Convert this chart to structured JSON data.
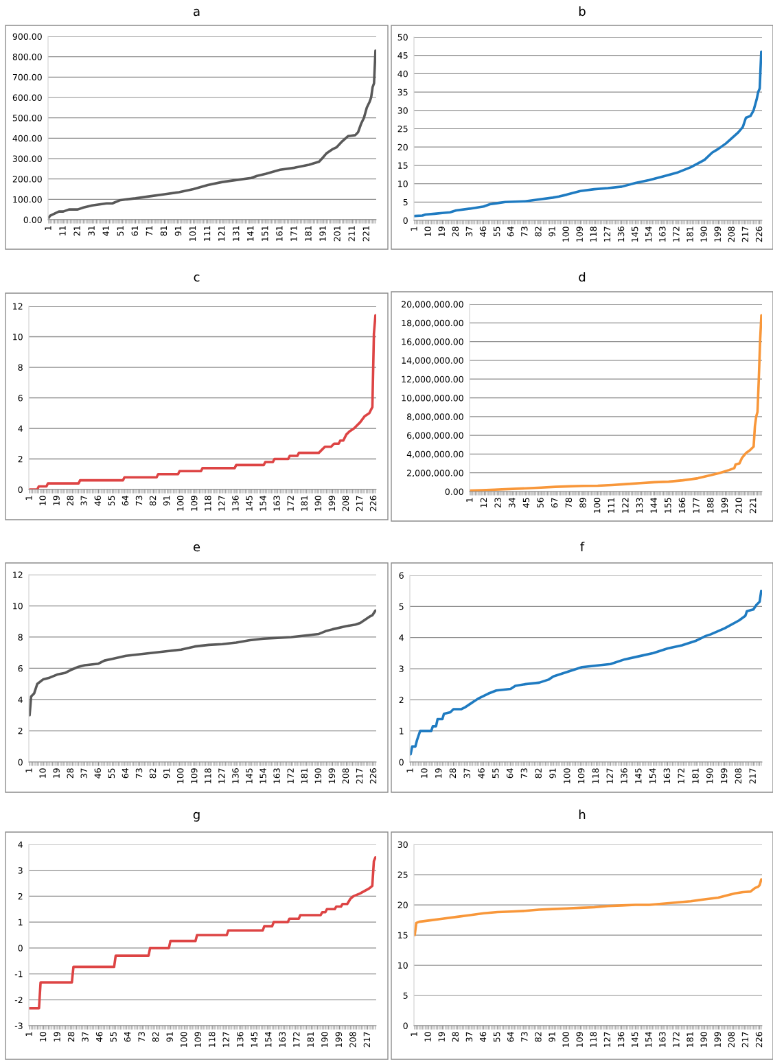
{
  "chart_data": [
    {
      "type": "line",
      "title": "a",
      "xlim": [
        0.5,
        227.5
      ],
      "xticks": [
        1,
        11,
        21,
        31,
        41,
        51,
        61,
        71,
        81,
        91,
        101,
        111,
        121,
        131,
        141,
        151,
        161,
        171,
        181,
        191,
        201,
        211,
        221
      ],
      "ylim": [
        0,
        900
      ],
      "yticks": [
        {
          "value": 0,
          "label": "0.00"
        },
        {
          "value": 100,
          "label": "100.00"
        },
        {
          "value": 200,
          "label": "200.00"
        },
        {
          "value": 300,
          "label": "300.00"
        },
        {
          "value": 400,
          "label": "400.00"
        },
        {
          "value": 500,
          "label": "500.00"
        },
        {
          "value": 600,
          "label": "600.00"
        },
        {
          "value": 700,
          "label": "700.00"
        },
        {
          "value": 800,
          "label": "800.00"
        },
        {
          "value": 900,
          "label": "900.00"
        }
      ],
      "grid": "y",
      "series": [
        {
          "color": "#595959",
          "x": [
            1,
            2,
            5,
            8,
            11,
            15,
            21,
            25,
            31,
            41,
            45,
            50,
            55,
            61,
            71,
            81,
            91,
            101,
            111,
            121,
            131,
            141,
            145,
            151,
            161,
            171,
            181,
            188,
            190,
            193,
            197,
            200,
            204,
            208,
            213,
            215,
            217,
            219,
            221,
            223,
            224,
            225,
            226,
            227
          ],
          "values": [
            10,
            20,
            30,
            40,
            40,
            50,
            50,
            60,
            70,
            80,
            80,
            95,
            100,
            105,
            115,
            125,
            135,
            150,
            170,
            185,
            195,
            205,
            215,
            225,
            245,
            255,
            270,
            285,
            300,
            325,
            345,
            355,
            385,
            410,
            415,
            430,
            470,
            500,
            550,
            580,
            600,
            650,
            670,
            830
          ]
        }
      ]
    },
    {
      "type": "line",
      "title": "b",
      "xlim": [
        0.5,
        227.5
      ],
      "xticks": [
        1,
        10,
        19,
        28,
        37,
        46,
        55,
        64,
        73,
        82,
        91,
        100,
        109,
        118,
        127,
        136,
        145,
        154,
        163,
        172,
        181,
        190,
        199,
        208,
        217,
        226
      ],
      "ylim": [
        0,
        50
      ],
      "yticks": [
        0,
        5,
        10,
        15,
        20,
        25,
        30,
        35,
        40,
        45,
        50
      ],
      "grid": "y",
      "series": [
        {
          "color": "#1f7bc1",
          "x": [
            1,
            6,
            8,
            14,
            19,
            24,
            28,
            37,
            46,
            50,
            55,
            60,
            73,
            82,
            91,
            95,
            100,
            109,
            118,
            127,
            136,
            145,
            154,
            163,
            172,
            181,
            190,
            195,
            199,
            204,
            208,
            212,
            215,
            217,
            220,
            222,
            224,
            225,
            226,
            227
          ],
          "values": [
            1.2,
            1.3,
            1.6,
            1.8,
            2.0,
            2.2,
            2.7,
            3.2,
            3.8,
            4.4,
            4.7,
            5.0,
            5.2,
            5.7,
            6.2,
            6.5,
            7.0,
            8.0,
            8.5,
            8.8,
            9.2,
            10.2,
            11.0,
            12.0,
            13.0,
            14.5,
            16.5,
            18.5,
            19.5,
            21,
            22.5,
            24,
            25.5,
            28,
            28.5,
            30,
            33,
            35,
            36,
            46
          ]
        }
      ]
    },
    {
      "type": "line",
      "title": "c",
      "xlim": [
        0.5,
        227.5
      ],
      "xticks": [
        1,
        10,
        19,
        28,
        37,
        46,
        55,
        64,
        73,
        82,
        91,
        100,
        109,
        118,
        127,
        136,
        145,
        154,
        163,
        172,
        181,
        190,
        199,
        208,
        217,
        226
      ],
      "ylim": [
        0,
        12
      ],
      "yticks": [
        0,
        2,
        4,
        6,
        8,
        10,
        12
      ],
      "grid": "y",
      "series": [
        {
          "color": "#dd4444",
          "x": [
            1,
            6,
            7,
            12,
            13,
            33,
            34,
            62,
            63,
            84,
            85,
            98,
            99,
            113,
            114,
            135,
            136,
            154,
            155,
            160,
            161,
            170,
            171,
            176,
            177,
            190,
            192,
            194,
            198,
            200,
            203,
            204,
            206,
            208,
            210,
            213,
            217,
            220,
            223,
            225,
            226,
            227
          ],
          "values": [
            0,
            0,
            0.2,
            0.2,
            0.4,
            0.4,
            0.6,
            0.6,
            0.8,
            0.8,
            1.0,
            1.0,
            1.2,
            1.2,
            1.4,
            1.4,
            1.6,
            1.6,
            1.8,
            1.8,
            2.0,
            2.0,
            2.2,
            2.2,
            2.4,
            2.4,
            2.6,
            2.8,
            2.8,
            3.0,
            3.0,
            3.2,
            3.2,
            3.6,
            3.8,
            4.0,
            4.4,
            4.8,
            5.0,
            5.4,
            10.2,
            11.4
          ]
        }
      ]
    },
    {
      "type": "line",
      "title": "d",
      "xlim": [
        0.5,
        227.5
      ],
      "xticks": [
        1,
        12,
        23,
        34,
        45,
        56,
        67,
        78,
        89,
        100,
        111,
        122,
        133,
        144,
        155,
        166,
        177,
        188,
        199,
        210,
        221
      ],
      "ylim": [
        0,
        20000000
      ],
      "yticks": [
        {
          "value": 0,
          "label": "0.00"
        },
        {
          "value": 2000000,
          "label": "2,000,000.00"
        },
        {
          "value": 4000000,
          "label": "4,000,000.00"
        },
        {
          "value": 6000000,
          "label": "6,000,000.00"
        },
        {
          "value": 8000000,
          "label": "8,000,000.00"
        },
        {
          "value": 10000000,
          "label": "10,000,000.00"
        },
        {
          "value": 12000000,
          "label": "12,000,000.00"
        },
        {
          "value": 14000000,
          "label": "14,000,000.00"
        },
        {
          "value": 16000000,
          "label": "16,000,000.00"
        },
        {
          "value": 18000000,
          "label": "18,000,000.00"
        },
        {
          "value": 20000000,
          "label": "20,000,000.00"
        }
      ],
      "grid": "y",
      "series": [
        {
          "color": "#f8973a",
          "x": [
            1,
            10,
            20,
            34,
            45,
            56,
            67,
            78,
            89,
            100,
            111,
            122,
            133,
            144,
            155,
            166,
            177,
            188,
            195,
            202,
            206,
            207,
            210,
            212,
            215,
            218,
            221,
            222,
            223,
            224,
            225,
            226,
            227
          ],
          "values": [
            100000,
            150000,
            200000,
            280000,
            350000,
            420000,
            500000,
            560000,
            600000,
            620000,
            700000,
            800000,
            900000,
            1000000,
            1050000,
            1200000,
            1400000,
            1750000,
            2000000,
            2300000,
            2500000,
            2900000,
            3000000,
            3600000,
            4100000,
            4400000,
            4800000,
            7000000,
            8000000,
            8500000,
            12000000,
            16000000,
            18800000
          ]
        }
      ]
    },
    {
      "type": "line",
      "title": "e",
      "xlim": [
        0.5,
        227.5
      ],
      "xticks": [
        1,
        10,
        19,
        28,
        37,
        46,
        55,
        64,
        73,
        82,
        91,
        100,
        109,
        118,
        127,
        136,
        145,
        154,
        163,
        172,
        181,
        190,
        199,
        208,
        217,
        226
      ],
      "ylim": [
        0,
        12
      ],
      "yticks": [
        0,
        2,
        4,
        6,
        8,
        10,
        12
      ],
      "grid": "y",
      "series": [
        {
          "color": "#595959",
          "x": [
            1,
            2,
            4,
            6,
            10,
            14,
            19,
            24,
            28,
            33,
            37,
            46,
            50,
            55,
            64,
            73,
            82,
            91,
            100,
            109,
            118,
            127,
            136,
            145,
            154,
            163,
            172,
            181,
            190,
            195,
            199,
            208,
            214,
            217,
            220,
            223,
            225,
            227
          ],
          "values": [
            3.0,
            4.2,
            4.4,
            5.0,
            5.3,
            5.4,
            5.6,
            5.7,
            5.9,
            6.1,
            6.2,
            6.3,
            6.5,
            6.6,
            6.8,
            6.9,
            7.0,
            7.1,
            7.2,
            7.4,
            7.5,
            7.55,
            7.65,
            7.8,
            7.9,
            7.95,
            8.0,
            8.1,
            8.2,
            8.4,
            8.5,
            8.7,
            8.8,
            8.9,
            9.1,
            9.3,
            9.4,
            9.7
          ]
        }
      ]
    },
    {
      "type": "line",
      "title": "f",
      "xlim": [
        0.5,
        222.5
      ],
      "xticks": [
        1,
        10,
        19,
        28,
        37,
        46,
        55,
        64,
        73,
        82,
        91,
        100,
        109,
        118,
        127,
        136,
        145,
        154,
        163,
        172,
        181,
        190,
        199,
        208,
        217
      ],
      "ylim": [
        0,
        6
      ],
      "yticks": [
        0,
        1,
        2,
        3,
        4,
        5,
        6
      ],
      "grid": "y",
      "series": [
        {
          "color": "#1f7bc1",
          "x": [
            1,
            2,
            4,
            5,
            7,
            14,
            15,
            17,
            18,
            21,
            22,
            26,
            28,
            33,
            35,
            38,
            41,
            44,
            46,
            50,
            55,
            64,
            67,
            73,
            82,
            88,
            91,
            100,
            109,
            118,
            127,
            136,
            145,
            154,
            163,
            172,
            181,
            187,
            190,
            199,
            208,
            212,
            213,
            217,
            219,
            221,
            222
          ],
          "values": [
            0.25,
            0.5,
            0.5,
            0.7,
            1.0,
            1.0,
            1.15,
            1.15,
            1.38,
            1.38,
            1.55,
            1.6,
            1.7,
            1.7,
            1.75,
            1.85,
            1.95,
            2.05,
            2.1,
            2.2,
            2.3,
            2.35,
            2.45,
            2.5,
            2.55,
            2.65,
            2.75,
            2.9,
            3.05,
            3.1,
            3.15,
            3.3,
            3.4,
            3.5,
            3.65,
            3.75,
            3.9,
            4.05,
            4.1,
            4.3,
            4.55,
            4.7,
            4.85,
            4.9,
            5.05,
            5.15,
            5.5
          ]
        }
      ]
    },
    {
      "type": "line",
      "title": "g",
      "xlim": [
        0.5,
        222.5
      ],
      "xticks": [
        1,
        10,
        19,
        28,
        37,
        46,
        55,
        64,
        73,
        82,
        91,
        100,
        109,
        118,
        127,
        136,
        145,
        154,
        163,
        172,
        181,
        190,
        199,
        208,
        217
      ],
      "ylim": [
        -3,
        4
      ],
      "yticks": [
        -3,
        -2,
        -1,
        0,
        1,
        2,
        3,
        4
      ],
      "grid": "y",
      "series": [
        {
          "color": "#dd4444",
          "x": [
            1,
            7,
            8,
            28,
            29,
            55,
            56,
            77,
            78,
            90,
            91,
            107,
            108,
            127,
            128,
            150,
            151,
            156,
            157,
            166,
            167,
            173,
            174,
            187,
            188,
            190,
            191,
            196,
            197,
            200,
            201,
            204,
            206,
            208,
            212,
            215,
            218,
            220,
            221,
            222
          ],
          "values": [
            -2.33,
            -2.33,
            -1.33,
            -1.33,
            -0.73,
            -0.73,
            -0.3,
            -0.3,
            0,
            0,
            0.27,
            0.27,
            0.5,
            0.5,
            0.68,
            0.68,
            0.84,
            0.84,
            1.0,
            1.0,
            1.13,
            1.13,
            1.27,
            1.27,
            1.38,
            1.38,
            1.5,
            1.5,
            1.6,
            1.6,
            1.7,
            1.7,
            1.9,
            2.0,
            2.1,
            2.2,
            2.3,
            2.4,
            3.35,
            3.5
          ]
        }
      ]
    },
    {
      "type": "line",
      "title": "h",
      "xlim": [
        0.5,
        227.5
      ],
      "xticks": [
        1,
        10,
        19,
        28,
        37,
        46,
        55,
        64,
        73,
        82,
        91,
        100,
        109,
        118,
        127,
        136,
        145,
        154,
        163,
        172,
        181,
        190,
        199,
        208,
        217,
        226
      ],
      "ylim": [
        0,
        30
      ],
      "yticks": [
        0,
        5,
        10,
        15,
        20,
        25,
        30
      ],
      "grid": "y",
      "series": [
        {
          "color": "#f8973a",
          "x": [
            1,
            2,
            4,
            10,
            19,
            28,
            37,
            46,
            55,
            64,
            73,
            82,
            91,
            100,
            109,
            118,
            127,
            136,
            145,
            154,
            163,
            172,
            181,
            190,
            199,
            205,
            210,
            215,
            220,
            223,
            225,
            226,
            227
          ],
          "values": [
            15,
            17,
            17.2,
            17.4,
            17.7,
            18.0,
            18.3,
            18.6,
            18.8,
            18.9,
            19.0,
            19.2,
            19.3,
            19.4,
            19.5,
            19.6,
            19.8,
            19.9,
            20.0,
            20.0,
            20.2,
            20.4,
            20.6,
            20.9,
            21.2,
            21.6,
            21.9,
            22.1,
            22.2,
            22.8,
            23.0,
            23.3,
            24.2
          ]
        }
      ]
    }
  ]
}
